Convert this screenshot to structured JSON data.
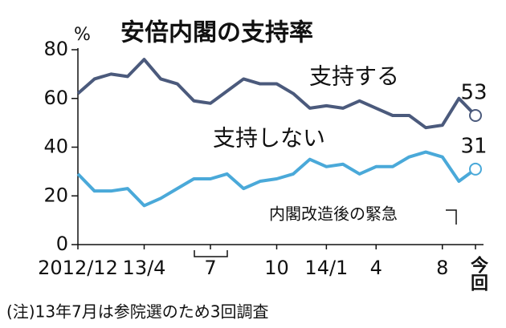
{
  "chart_data": {
    "type": "line",
    "title": "安倍内閣の支持率",
    "ylabel": "%",
    "categories": [
      "2012/12",
      null,
      null,
      null,
      "13/4",
      null,
      null,
      null,
      "7",
      null,
      null,
      null,
      "10",
      null,
      null,
      "14/1",
      null,
      null,
      "4",
      null,
      null,
      null,
      "8",
      null,
      "今回"
    ],
    "series": [
      {
        "name": "支持する",
        "color": "#4b5a7c",
        "values": [
          62,
          68,
          70,
          69,
          76,
          68,
          66,
          59,
          58,
          63,
          68,
          66,
          66,
          62,
          56,
          57,
          56,
          59,
          56,
          53,
          53,
          48,
          49,
          60,
          53
        ]
      },
      {
        "name": "支持しない",
        "color": "#4aa9d9",
        "values": [
          29,
          22,
          22,
          23,
          16,
          19,
          23,
          27,
          27,
          29,
          23,
          26,
          27,
          29,
          35,
          32,
          33,
          29,
          32,
          32,
          36,
          38,
          36,
          26,
          31
        ]
      }
    ],
    "ylim": [
      0,
      80
    ],
    "yticks": [
      0,
      20,
      40,
      60,
      80
    ],
    "annotation": "内閣改造後の緊急",
    "note": "(注)13年7月は参院選のため3回調査"
  }
}
